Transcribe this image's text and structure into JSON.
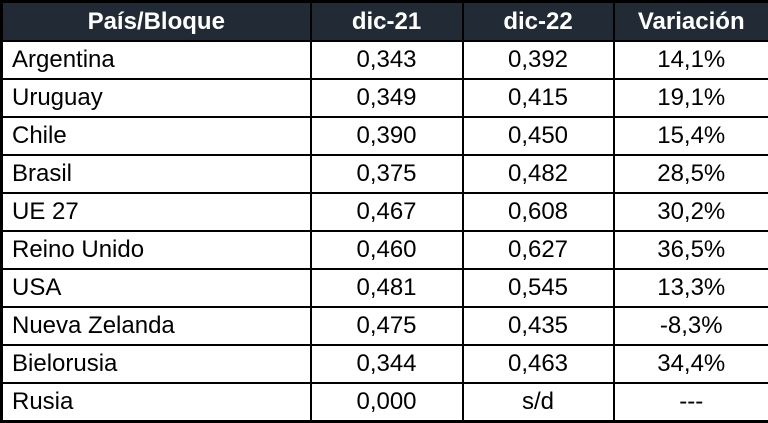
{
  "chart_data": {
    "type": "table",
    "title": "",
    "columns": [
      "País/Bloque",
      "dic-21",
      "dic-22",
      "Variación"
    ],
    "rows": [
      [
        "Argentina",
        "0,343",
        "0,392",
        "14,1%"
      ],
      [
        "Uruguay",
        "0,349",
        "0,415",
        "19,1%"
      ],
      [
        "Chile",
        "0,390",
        "0,450",
        "15,4%"
      ],
      [
        "Brasil",
        "0,375",
        "0,482",
        "28,5%"
      ],
      [
        "UE 27",
        "0,467",
        "0,608",
        "30,2%"
      ],
      [
        "Reino Unido",
        "0,460",
        "0,627",
        "36,5%"
      ],
      [
        "USA",
        "0,481",
        "0,545",
        "13,3%"
      ],
      [
        "Nueva Zelanda",
        "0,475",
        "0,435",
        "-8,3%"
      ],
      [
        "Bielorusia",
        "0,344",
        "0,463",
        "34,4%"
      ],
      [
        "Rusia",
        "0,000",
        "s/d",
        "---"
      ]
    ]
  },
  "colors": {
    "header_bg": "#222B35",
    "header_text": "#FFFFFF",
    "border": "#000000",
    "row_bg": "#FFFFFF",
    "cell_text": "#000000"
  }
}
